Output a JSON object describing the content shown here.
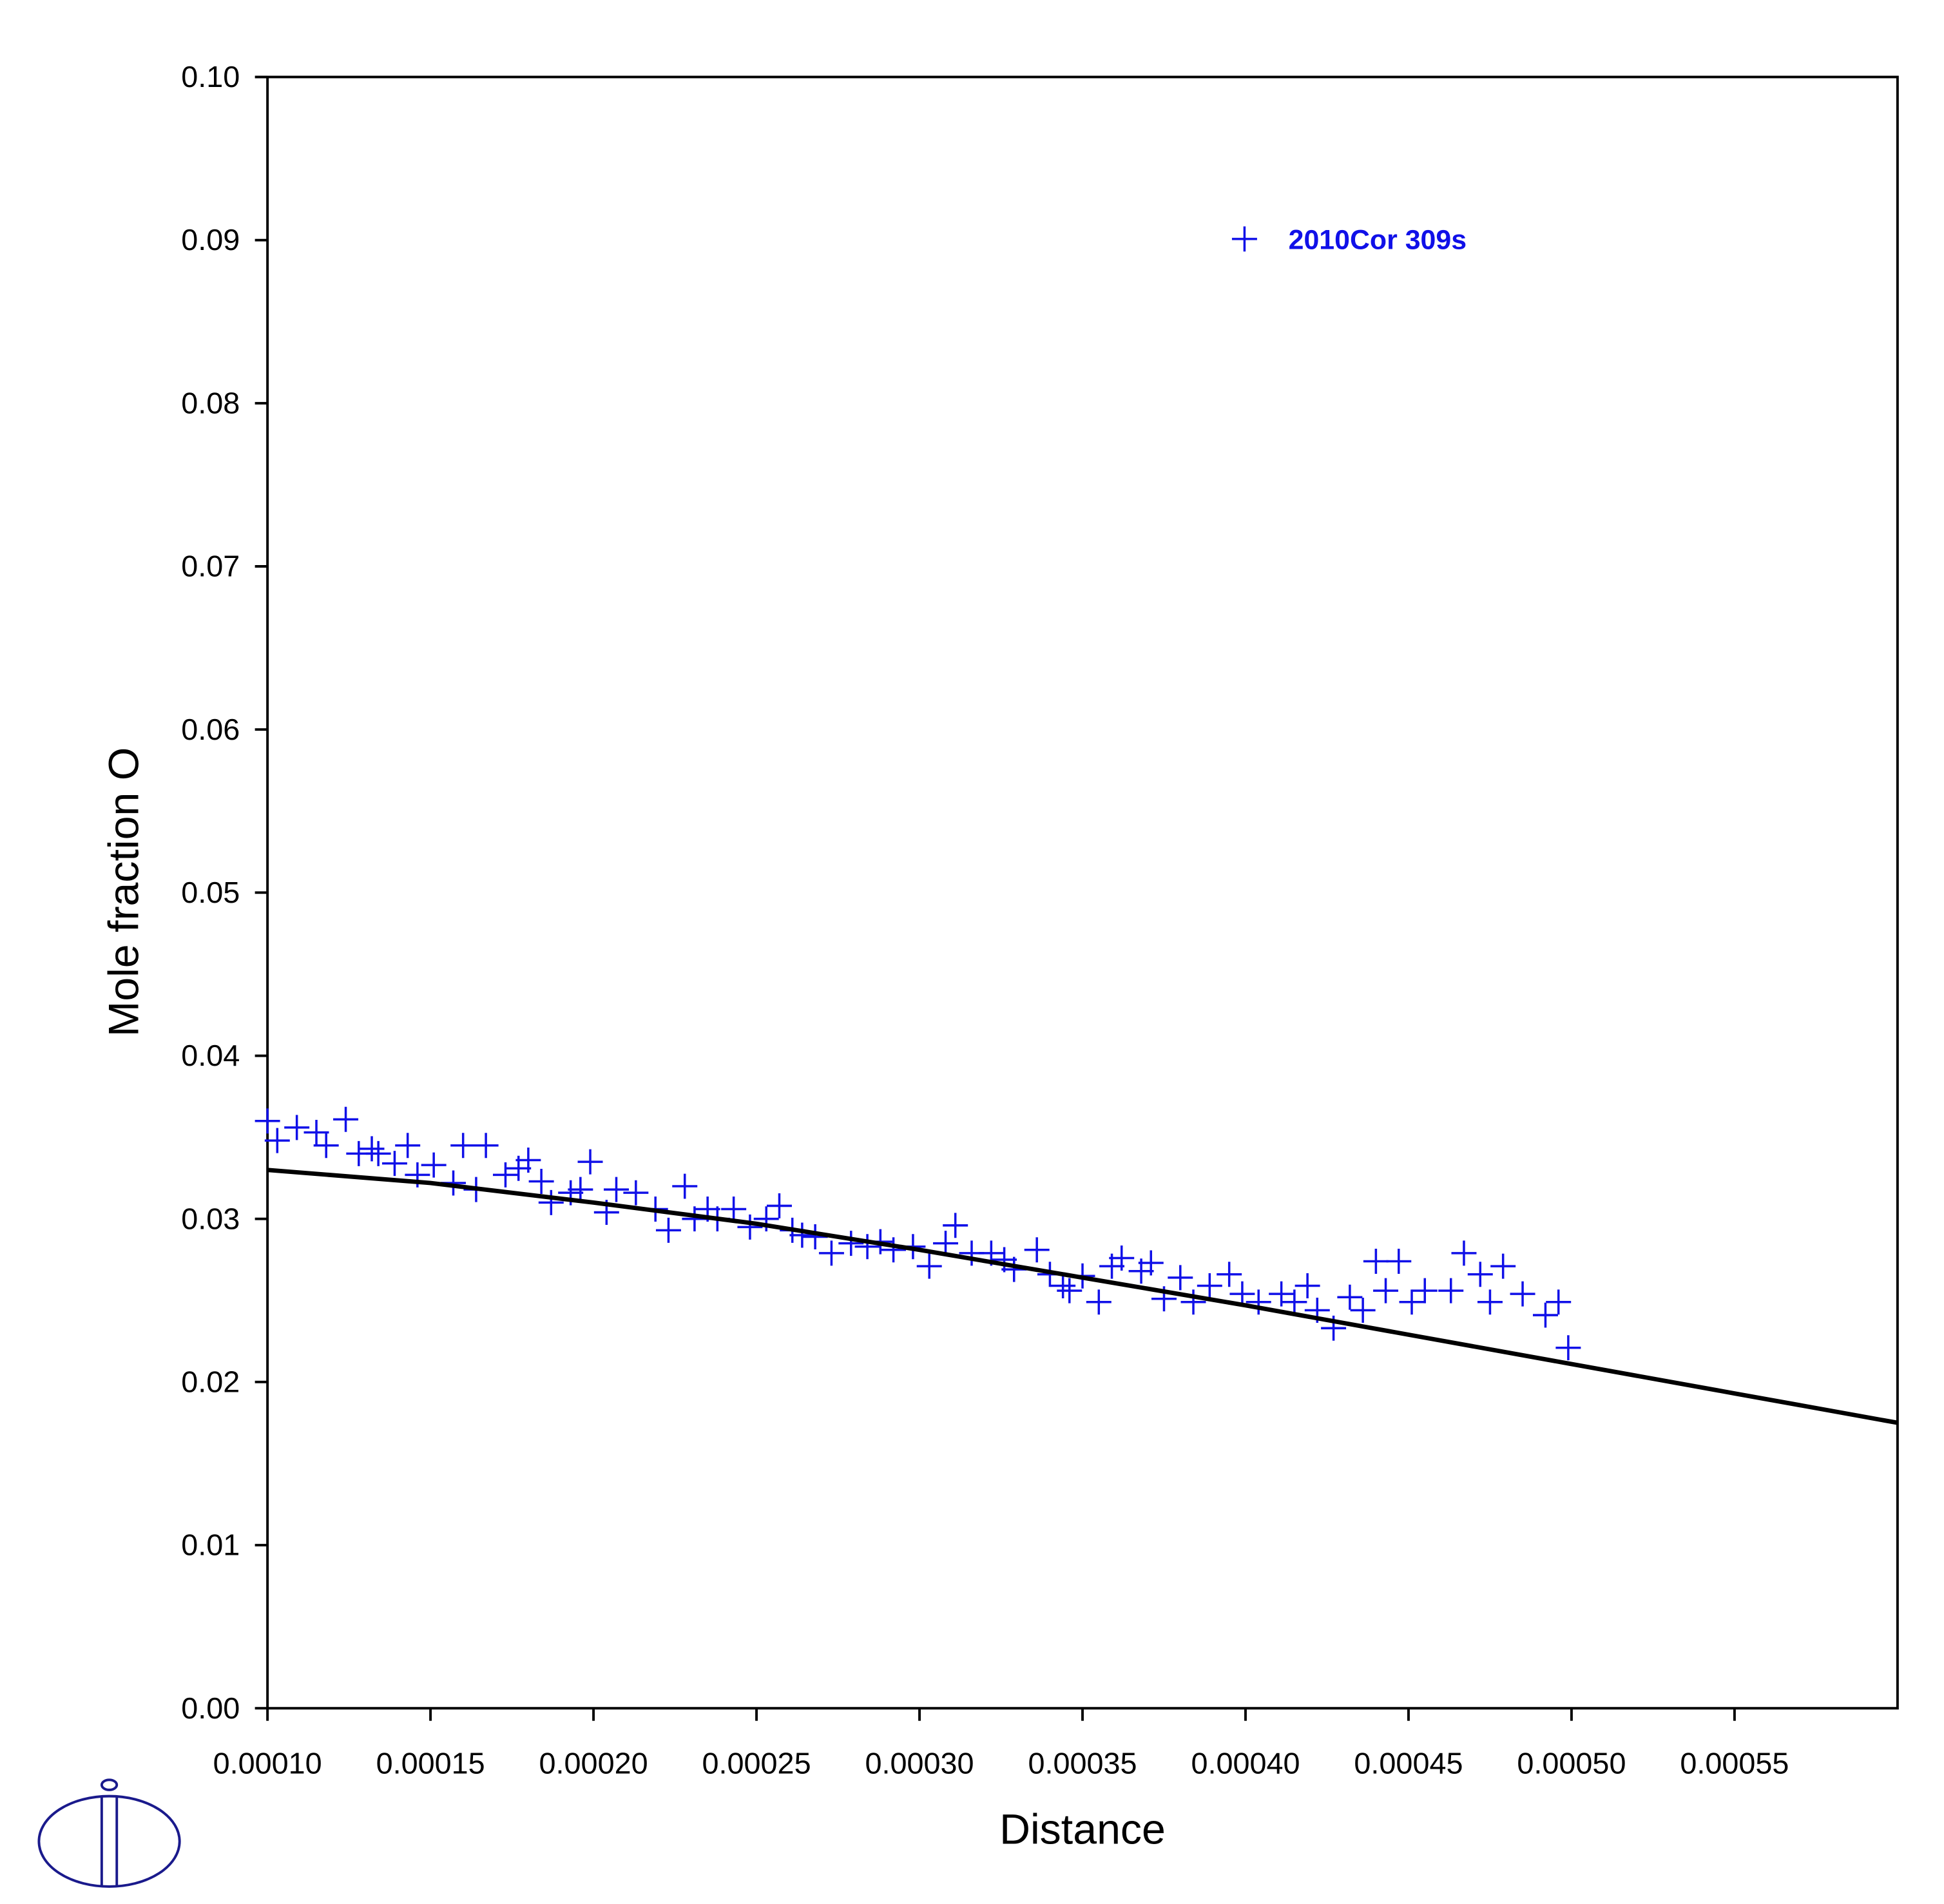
{
  "chart_data": {
    "type": "scatter",
    "x_label": "Distance",
    "y_label": "Mole fraction O",
    "xlim": [
      0.0001,
      0.0006
    ],
    "ylim": [
      0,
      0.1
    ],
    "xticks": [
      {
        "value": 0.0001,
        "label": "0.00010"
      },
      {
        "value": 0.00015,
        "label": "0.00015"
      },
      {
        "value": 0.0002,
        "label": "0.00020"
      },
      {
        "value": 0.00025,
        "label": "0.00025"
      },
      {
        "value": 0.0003,
        "label": "0.00030"
      },
      {
        "value": 0.00035,
        "label": "0.00035"
      },
      {
        "value": 0.0004,
        "label": "0.00040"
      },
      {
        "value": 0.00045,
        "label": "0.00045"
      },
      {
        "value": 0.0005,
        "label": "0.00050"
      },
      {
        "value": 0.00055,
        "label": "0.00055"
      }
    ],
    "yticks": [
      {
        "value": 0,
        "label": "0.00"
      },
      0.01,
      0.02,
      0.03,
      0.04,
      0.05,
      0.06,
      0.07,
      0.08,
      0.09,
      {
        "value": 0.1,
        "label": "0.10"
      }
    ],
    "grid": false,
    "legend": "upper right",
    "series": [
      {
        "name": "2010Cor 309s",
        "type": "scatter",
        "color": "#1010e8",
        "x": [
          0.0001,
          0.000103,
          0.000109,
          0.000115,
          0.000118,
          0.000124,
          0.000128,
          0.000132,
          0.000134,
          0.000139,
          0.000143,
          0.000146,
          0.000151,
          0.000157,
          0.00016,
          0.000164,
          0.000167,
          0.000173,
          0.000177,
          0.00018,
          0.000184,
          0.000187,
          0.000193,
          0.000196,
          0.000199,
          0.000204,
          0.000207,
          0.000213,
          0.000219,
          0.000223,
          0.000228,
          0.000231,
          0.000235,
          0.000238,
          0.000243,
          0.000248,
          0.000253,
          0.000257,
          0.000261,
          0.000264,
          0.000268,
          0.000273,
          0.000279,
          0.000284,
          0.000288,
          0.000292,
          0.000298,
          0.000303,
          0.000308,
          0.000311,
          0.000316,
          0.000322,
          0.000326,
          0.000329,
          0.000336,
          0.00034,
          0.000344,
          0.000346,
          0.00035,
          0.000355,
          0.000359,
          0.000362,
          0.000368,
          0.000371,
          0.000375,
          0.00038,
          0.000384,
          0.000389,
          0.000395,
          0.000399,
          0.000404,
          0.000411,
          0.000415,
          0.000419,
          0.000422,
          0.000427,
          0.000432,
          0.000436,
          0.00044,
          0.000443,
          0.000447,
          0.000451,
          0.000455,
          0.000463,
          0.000467,
          0.000472,
          0.000475,
          0.000479,
          0.000485,
          0.000492,
          0.000496,
          0.000499
        ],
        "values": [
          0.036,
          0.0348,
          0.0356,
          0.0353,
          0.0345,
          0.0361,
          0.034,
          0.0343,
          0.034,
          0.0334,
          0.0345,
          0.0327,
          0.0333,
          0.0322,
          0.0345,
          0.0318,
          0.0345,
          0.0327,
          0.0331,
          0.0336,
          0.0323,
          0.031,
          0.0316,
          0.0318,
          0.0335,
          0.0304,
          0.0318,
          0.0316,
          0.0306,
          0.0293,
          0.032,
          0.03,
          0.0306,
          0.03,
          0.0306,
          0.0295,
          0.03,
          0.0308,
          0.0293,
          0.029,
          0.0289,
          0.0279,
          0.0285,
          0.0283,
          0.0286,
          0.0281,
          0.0283,
          0.0271,
          0.0285,
          0.0296,
          0.0279,
          0.0279,
          0.0275,
          0.0269,
          0.0281,
          0.0266,
          0.0259,
          0.0256,
          0.0265,
          0.0249,
          0.0271,
          0.0276,
          0.0268,
          0.0273,
          0.0251,
          0.0264,
          0.0249,
          0.0259,
          0.0266,
          0.0254,
          0.0249,
          0.0254,
          0.0249,
          0.0259,
          0.0244,
          0.0233,
          0.0252,
          0.0244,
          0.0274,
          0.0256,
          0.0274,
          0.0249,
          0.0256,
          0.0256,
          0.0279,
          0.0266,
          0.0249,
          0.0271,
          0.0254,
          0.0241,
          0.0249,
          0.0221
        ]
      },
      {
        "type": "line",
        "color": "#000000",
        "x": [
          0.0001,
          0.00015,
          0.0002,
          0.00025,
          0.0003,
          0.00035,
          0.0004,
          0.00045,
          0.0005,
          0.00055,
          0.0006
        ],
        "values": [
          0.033,
          0.0322,
          0.031,
          0.0297,
          0.0281,
          0.0264,
          0.0247,
          0.0229,
          0.0211,
          0.0193,
          0.0175
        ]
      }
    ]
  }
}
